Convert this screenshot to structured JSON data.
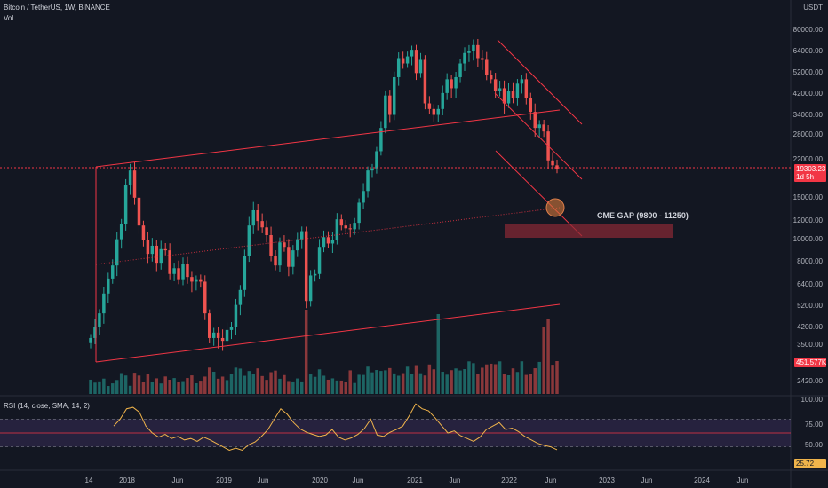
{
  "header": {
    "title": "Bitcoin / TetherUS, 1W, BINANCE",
    "vol": "Vol"
  },
  "currency": "USDT",
  "price_axis": [
    "80000.00",
    "64000.00",
    "52000.00",
    "42000.00",
    "34000.00",
    "28000.00",
    "22000.00",
    "15000.00",
    "12000.00",
    "10000.00",
    "8000.00",
    "6400.00",
    "5200.00",
    "4200.00",
    "3500.00",
    "2420.00"
  ],
  "rsi_axis": [
    "100.00",
    "75.00",
    "50.00"
  ],
  "time_axis": [
    "14",
    "2018",
    "Jun",
    "2019",
    "Jun",
    "2020",
    "Jun",
    "2021",
    "Jun",
    "2022",
    "Jun",
    "2023",
    "Jun",
    "2024",
    "Jun"
  ],
  "last_price": {
    "value": "19303.23",
    "countdown": "1d 5h"
  },
  "vol_tag": "451.577K",
  "rsi_tag": "25.72",
  "rsi_label": "RSI (14, close, SMA, 14, 2)",
  "annotation": "CME GAP (9800 - 11250)",
  "colors": {
    "bg": "#131722",
    "up": "#26a69a",
    "down": "#ef5350",
    "line": "#f23645",
    "rsi": "#f0b44b",
    "rsi_band": "#7e57c2",
    "gap": "#8c2a35"
  },
  "chart_data": {
    "type": "candlestick",
    "symbol": "BTCUSDT",
    "interval": "1W",
    "exchange": "BINANCE",
    "log_scale": true,
    "approx_weekly_close": [
      3600,
      4000,
      4600,
      5600,
      6500,
      7400,
      9600,
      11200,
      16500,
      19000,
      14500,
      11000,
      9500,
      8300,
      9000,
      7600,
      8700,
      8600,
      6800,
      7200,
      6400,
      7500,
      6600,
      6300,
      6400,
      6300,
      4600,
      3600,
      3800,
      3600,
      3500,
      3900,
      4000,
      5000,
      5800,
      8100,
      11000,
      12800,
      11500,
      10800,
      10000,
      8100,
      7400,
      9300,
      8900,
      7300,
      8600,
      9600,
      10400,
      5200,
      6700,
      6800,
      8900,
      9800,
      9200,
      9500,
      11700,
      11000,
      10700,
      10600,
      11300,
      13800,
      15500,
      19000,
      19400,
      23000,
      29000,
      40000,
      33000,
      48000,
      58000,
      55000,
      59000,
      63000,
      50000,
      57000,
      37000,
      35000,
      33000,
      35000,
      41000,
      47000,
      43000,
      48000,
      55000,
      61000,
      62000,
      66000,
      58000,
      57000,
      49000,
      47000,
      42000,
      43000,
      37000,
      42000,
      39000,
      45000,
      47000,
      39000,
      34000,
      29000,
      30000,
      28000,
      21000,
      20000,
      19303
    ],
    "rsi_approx": [
      60,
      70,
      85,
      87,
      80,
      60,
      50,
      44,
      48,
      42,
      45,
      40,
      42,
      38,
      44,
      40,
      35,
      30,
      25,
      28,
      25,
      33,
      37,
      45,
      55,
      70,
      85,
      77,
      65,
      56,
      51,
      48,
      45,
      47,
      55,
      44,
      40,
      43,
      48,
      56,
      70,
      47,
      45,
      51,
      55,
      60,
      75,
      92,
      85,
      82,
      72,
      61,
      50,
      53,
      46,
      42,
      38,
      44,
      55,
      60,
      65,
      55,
      57,
      52,
      45,
      40,
      35,
      32,
      30,
      25.72
    ],
    "rsi_levels": [
      70,
      50,
      30
    ],
    "ylim": [
      2000,
      100000
    ],
    "annotation_zone": {
      "label": "CME GAP (9800 - 11250)",
      "low": 9800,
      "high": 11250
    }
  }
}
